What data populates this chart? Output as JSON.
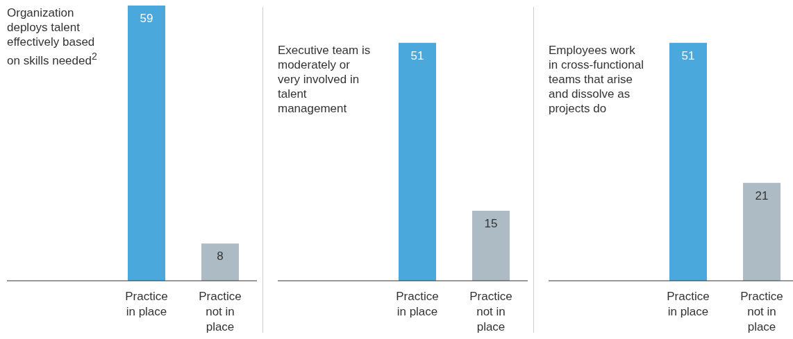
{
  "chart_data": [
    {
      "type": "bar",
      "title": "Organization deploys talent effectively based on skills needed$^{2}$",
      "categories": [
        "Practice in place",
        "Practice not in place"
      ],
      "values": [
        59,
        8
      ],
      "colors": [
        "#4aa8dc",
        "#adbcc4"
      ],
      "data_labels": true
    },
    {
      "type": "bar",
      "title": "Executive team is moderately or very involved in talent management",
      "categories": [
        "Practice in place",
        "Practice not in place"
      ],
      "values": [
        51,
        15
      ],
      "colors": [
        "#4aa8dc",
        "#adbcc4"
      ],
      "data_labels": true
    },
    {
      "type": "bar",
      "title": "Employees work in cross-functional teams that arise and dissolve as projects do",
      "categories": [
        "Practice in place",
        "Practice not in place"
      ],
      "values": [
        51,
        21
      ],
      "colors": [
        "#4aa8dc",
        "#adbcc4"
      ],
      "data_labels": true
    }
  ]
}
